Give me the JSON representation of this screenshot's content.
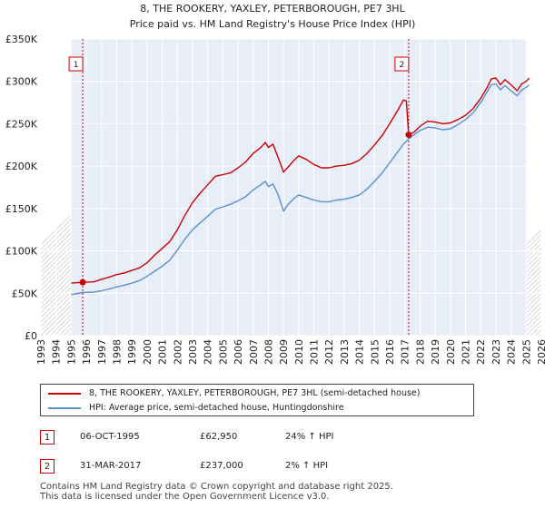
{
  "chart_data": {
    "type": "line",
    "title": "8, THE ROOKERY, YAXLEY, PETERBOROUGH, PE7 3HL",
    "subtitle": "Price paid vs. HM Land Registry's House Price Index (HPI)",
    "xlim": [
      1993,
      2026
    ],
    "ylim": [
      0,
      350000
    ],
    "x_ticks": [
      1993,
      1994,
      1995,
      1996,
      1997,
      1998,
      1999,
      2000,
      2001,
      2002,
      2003,
      2004,
      2005,
      2006,
      2007,
      2008,
      2009,
      2010,
      2011,
      2012,
      2013,
      2014,
      2015,
      2016,
      2017,
      2018,
      2019,
      2020,
      2021,
      2022,
      2023,
      2024,
      2025,
      2026
    ],
    "y_ticks": [
      0,
      50000,
      100000,
      150000,
      200000,
      250000,
      300000,
      350000
    ],
    "y_tick_labels": [
      "£0",
      "£50K",
      "£100K",
      "£150K",
      "£200K",
      "£250K",
      "£300K",
      "£350K"
    ],
    "shaded_ranges": [
      [
        1993,
        1995
      ],
      [
        2025,
        2026
      ]
    ],
    "grid": true,
    "series": [
      {
        "name": "8, THE ROOKERY, YAXLEY, PETERBOROUGH, PE7 3HL (semi-detached house)",
        "color": "#cc0000",
        "points": [
          [
            1995.0,
            62000
          ],
          [
            1995.76,
            62950
          ],
          [
            1996.5,
            63500
          ],
          [
            1997.0,
            66500
          ],
          [
            1997.5,
            69000
          ],
          [
            1998.0,
            72000
          ],
          [
            1998.5,
            74000
          ],
          [
            1999.0,
            77000
          ],
          [
            1999.5,
            80000
          ],
          [
            2000.0,
            86000
          ],
          [
            2000.5,
            95000
          ],
          [
            2001.0,
            103000
          ],
          [
            2001.5,
            111000
          ],
          [
            2002.0,
            125000
          ],
          [
            2002.5,
            142000
          ],
          [
            2003.0,
            157000
          ],
          [
            2003.5,
            168000
          ],
          [
            2004.0,
            178000
          ],
          [
            2004.5,
            188000
          ],
          [
            2005.0,
            190000
          ],
          [
            2005.5,
            192000
          ],
          [
            2006.0,
            198000
          ],
          [
            2006.5,
            205000
          ],
          [
            2007.0,
            215000
          ],
          [
            2007.5,
            222000
          ],
          [
            2007.8,
            228000
          ],
          [
            2008.0,
            222000
          ],
          [
            2008.3,
            226000
          ],
          [
            2008.6,
            212000
          ],
          [
            2009.0,
            193000
          ],
          [
            2009.3,
            199000
          ],
          [
            2009.7,
            207000
          ],
          [
            2010.0,
            212000
          ],
          [
            2010.5,
            208000
          ],
          [
            2011.0,
            202000
          ],
          [
            2011.5,
            198000
          ],
          [
            2012.0,
            198000
          ],
          [
            2012.5,
            200000
          ],
          [
            2013.0,
            201000
          ],
          [
            2013.5,
            203000
          ],
          [
            2014.0,
            207000
          ],
          [
            2014.5,
            215000
          ],
          [
            2015.0,
            225000
          ],
          [
            2015.5,
            236000
          ],
          [
            2016.0,
            250000
          ],
          [
            2016.5,
            265000
          ],
          [
            2016.9,
            278000
          ],
          [
            2017.1,
            277000
          ],
          [
            2017.25,
            237000
          ],
          [
            2017.6,
            240000
          ],
          [
            2018.0,
            247000
          ],
          [
            2018.5,
            253000
          ],
          [
            2019.0,
            252000
          ],
          [
            2019.5,
            250000
          ],
          [
            2020.0,
            251000
          ],
          [
            2020.5,
            255000
          ],
          [
            2021.0,
            260000
          ],
          [
            2021.5,
            268000
          ],
          [
            2022.0,
            280000
          ],
          [
            2022.4,
            292000
          ],
          [
            2022.7,
            303000
          ],
          [
            2023.0,
            304000
          ],
          [
            2023.3,
            296000
          ],
          [
            2023.6,
            302000
          ],
          [
            2024.0,
            296000
          ],
          [
            2024.4,
            289000
          ],
          [
            2024.7,
            297000
          ],
          [
            2025.0,
            300000
          ],
          [
            2025.2,
            304000
          ]
        ]
      },
      {
        "name": "HPI: Average price, semi-detached house, Huntingdonshire",
        "color": "#5b8fd0",
        "points": [
          [
            1995.0,
            48500
          ],
          [
            1995.76,
            50800
          ],
          [
            1996.5,
            51500
          ],
          [
            1997.0,
            53000
          ],
          [
            1997.5,
            55000
          ],
          [
            1998.0,
            57500
          ],
          [
            1998.5,
            59500
          ],
          [
            1999.0,
            62000
          ],
          [
            1999.5,
            65000
          ],
          [
            2000.0,
            70000
          ],
          [
            2000.5,
            76000
          ],
          [
            2001.0,
            82000
          ],
          [
            2001.5,
            89000
          ],
          [
            2002.0,
            101000
          ],
          [
            2002.5,
            114000
          ],
          [
            2003.0,
            125000
          ],
          [
            2003.5,
            133000
          ],
          [
            2004.0,
            141000
          ],
          [
            2004.5,
            149000
          ],
          [
            2005.0,
            152000
          ],
          [
            2005.5,
            155000
          ],
          [
            2006.0,
            159000
          ],
          [
            2006.5,
            164000
          ],
          [
            2007.0,
            172000
          ],
          [
            2007.5,
            178000
          ],
          [
            2007.8,
            182000
          ],
          [
            2008.0,
            176000
          ],
          [
            2008.3,
            179000
          ],
          [
            2008.6,
            168000
          ],
          [
            2009.0,
            147000
          ],
          [
            2009.3,
            155000
          ],
          [
            2009.7,
            162000
          ],
          [
            2010.0,
            166000
          ],
          [
            2010.5,
            163000
          ],
          [
            2011.0,
            160000
          ],
          [
            2011.5,
            158000
          ],
          [
            2012.0,
            158000
          ],
          [
            2012.5,
            160000
          ],
          [
            2013.0,
            161000
          ],
          [
            2013.5,
            163000
          ],
          [
            2014.0,
            166000
          ],
          [
            2014.5,
            173000
          ],
          [
            2015.0,
            182000
          ],
          [
            2015.5,
            192000
          ],
          [
            2016.0,
            204000
          ],
          [
            2016.5,
            216000
          ],
          [
            2016.9,
            226000
          ],
          [
            2017.25,
            232000
          ],
          [
            2017.6,
            237000
          ],
          [
            2018.0,
            242000
          ],
          [
            2018.5,
            246000
          ],
          [
            2019.0,
            245000
          ],
          [
            2019.5,
            243000
          ],
          [
            2020.0,
            244000
          ],
          [
            2020.5,
            249000
          ],
          [
            2021.0,
            255000
          ],
          [
            2021.5,
            263000
          ],
          [
            2022.0,
            275000
          ],
          [
            2022.4,
            287000
          ],
          [
            2022.7,
            296000
          ],
          [
            2023.0,
            297000
          ],
          [
            2023.3,
            290000
          ],
          [
            2023.6,
            295000
          ],
          [
            2024.0,
            289000
          ],
          [
            2024.4,
            283000
          ],
          [
            2024.7,
            290000
          ],
          [
            2025.0,
            293000
          ],
          [
            2025.2,
            296000
          ]
        ]
      }
    ],
    "markers": [
      {
        "label": "1",
        "x": 1995.76,
        "y": 62950
      },
      {
        "label": "2",
        "x": 2017.25,
        "y": 237000
      }
    ]
  },
  "legend": {
    "items": [
      {
        "label": "8, THE ROOKERY, YAXLEY, PETERBOROUGH, PE7 3HL (semi-detached house)",
        "color": "#cc0000"
      },
      {
        "label": "HPI: Average price, semi-detached house, Huntingdonshire",
        "color": "#5b8fd0"
      }
    ]
  },
  "transactions": [
    {
      "num": "1",
      "date": "06-OCT-1995",
      "price": "£62,950",
      "hpi": "24% ↑ HPI"
    },
    {
      "num": "2",
      "date": "31-MAR-2017",
      "price": "£237,000",
      "hpi": "2% ↑ HPI"
    }
  ],
  "footer": {
    "line1": "Contains HM Land Registry data © Crown copyright and database right 2025.",
    "line2": "This data is licensed under the Open Government Licence v3.0."
  }
}
